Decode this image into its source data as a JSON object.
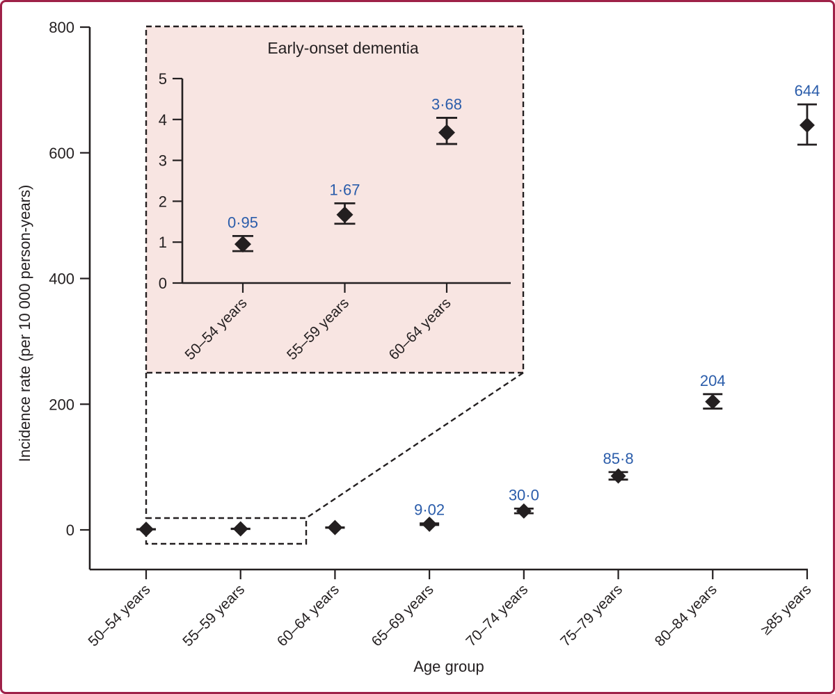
{
  "colors": {
    "frame": "#9e2148",
    "ink": "#231f20",
    "accent_blue": "#2a5caa",
    "inset_background": "#f8e5e2"
  },
  "chart_data": {
    "type": "scatter",
    "title": "",
    "xlabel": "Age group",
    "ylabel": "Incidence rate (per 10 000 person-years)",
    "categories": [
      "50–54 years",
      "55–59 years",
      "60–64 years",
      "65–69 years",
      "70–74 years",
      "75–79 years",
      "80–84 years",
      "≥85 years"
    ],
    "series": [
      {
        "name": "Incidence rate",
        "values": [
          0.95,
          1.67,
          3.68,
          9.02,
          30.0,
          85.8,
          204,
          644
        ],
        "ci_low": [
          0.78,
          1.45,
          3.4,
          7.8,
          26.4,
          80.0,
          193,
          613
        ],
        "ci_high": [
          1.15,
          1.95,
          4.04,
          10.4,
          33.9,
          92.0,
          216,
          677
        ],
        "point_labels": [
          "",
          "",
          "",
          "9·02",
          "30·0",
          "85·8",
          "204",
          "644"
        ]
      }
    ],
    "ylim": [
      0,
      800
    ],
    "yticks": [
      0,
      200,
      400,
      600,
      800
    ],
    "marker": "diamond",
    "error_bars": true,
    "grid": false,
    "legend": "none",
    "zoom_region_categories": [
      "50–54 years",
      "55–59 years",
      "60–64 years"
    ],
    "inset": {
      "title": "Early-onset dementia",
      "categories": [
        "50–54 years",
        "55–59 years",
        "60–64 years"
      ],
      "values": [
        0.95,
        1.67,
        3.68
      ],
      "ci_low": [
        0.78,
        1.45,
        3.4
      ],
      "ci_high": [
        1.15,
        1.95,
        4.04
      ],
      "point_labels": [
        "0·95",
        "1·67",
        "3·68"
      ],
      "ylim": [
        0,
        5
      ],
      "yticks": [
        0,
        1,
        2,
        3,
        4,
        5
      ],
      "marker": "diamond",
      "error_bars": true
    }
  }
}
